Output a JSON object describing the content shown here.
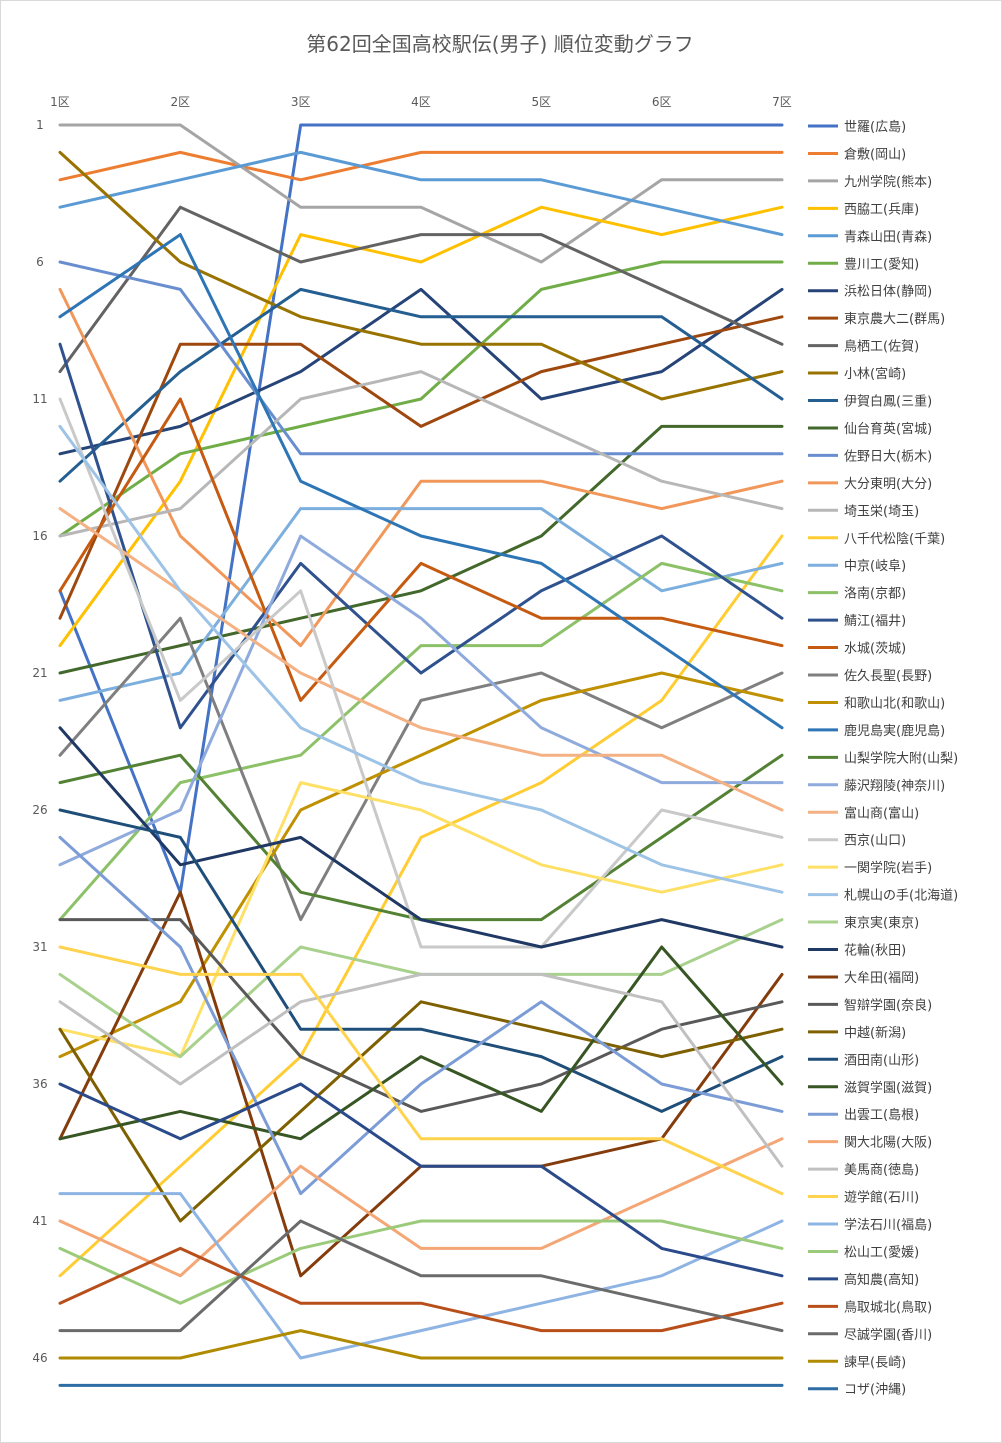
{
  "chart_data": {
    "type": "line",
    "title": "第62回全国高校駅伝(男子) 順位変動グラフ",
    "categories": [
      "1区",
      "2区",
      "3区",
      "4区",
      "5区",
      "6区",
      "7区"
    ],
    "y_tick_labels": [
      "1",
      "6",
      "11",
      "16",
      "21",
      "26",
      "31",
      "36",
      "41",
      "46"
    ],
    "ylim": [
      1,
      47
    ],
    "y_reversed": true,
    "grid": false,
    "legend_position": "right",
    "series": [
      {
        "name": "世羅(広島)",
        "color": "#4472C4",
        "values": [
          18,
          29,
          1,
          1,
          1,
          1,
          1
        ]
      },
      {
        "name": "倉敷(岡山)",
        "color": "#ED7D31",
        "values": [
          3,
          2,
          3,
          2,
          2,
          2,
          2
        ]
      },
      {
        "name": "九州学院(熊本)",
        "color": "#A5A5A5",
        "values": [
          1,
          1,
          4,
          4,
          6,
          3,
          3
        ]
      },
      {
        "name": "西脇工(兵庫)",
        "color": "#FFC000",
        "values": [
          20,
          14,
          5,
          6,
          4,
          5,
          4
        ]
      },
      {
        "name": "青森山田(青森)",
        "color": "#5B9BD5",
        "values": [
          4,
          3,
          2,
          3,
          3,
          4,
          5
        ]
      },
      {
        "name": "豊川工(愛知)",
        "color": "#70AD47",
        "values": [
          16,
          13,
          12,
          11,
          7,
          6,
          6
        ]
      },
      {
        "name": "浜松日体(静岡)",
        "color": "#264478",
        "values": [
          13,
          12,
          10,
          7,
          11,
          10,
          7
        ]
      },
      {
        "name": "東京農大二(群馬)",
        "color": "#9E480E",
        "values": [
          19,
          9,
          9,
          12,
          10,
          9,
          8
        ]
      },
      {
        "name": "鳥栖工(佐賀)",
        "color": "#636363",
        "values": [
          10,
          4,
          6,
          5,
          5,
          7,
          9
        ]
      },
      {
        "name": "小林(宮崎)",
        "color": "#997300",
        "values": [
          2,
          6,
          8,
          9,
          9,
          11,
          10
        ]
      },
      {
        "name": "伊賀白鳳(三重)",
        "color": "#255E91",
        "values": [
          14,
          10,
          7,
          8,
          8,
          8,
          11
        ]
      },
      {
        "name": "仙台育英(宮城)",
        "color": "#43682B",
        "values": [
          21,
          20,
          19,
          18,
          16,
          12,
          12
        ]
      },
      {
        "name": "佐野日大(栃木)",
        "color": "#698ED0",
        "values": [
          6,
          7,
          13,
          13,
          13,
          13,
          13
        ]
      },
      {
        "name": "大分東明(大分)",
        "color": "#F1975A",
        "values": [
          7,
          16,
          20,
          14,
          14,
          15,
          14
        ]
      },
      {
        "name": "埼玉栄(埼玉)",
        "color": "#B7B7B7",
        "values": [
          16,
          15,
          11,
          10,
          12,
          14,
          15
        ]
      },
      {
        "name": "八千代松陰(千葉)",
        "color": "#FFCD33",
        "values": [
          43,
          39,
          35,
          27,
          25,
          22,
          16
        ]
      },
      {
        "name": "中京(岐阜)",
        "color": "#7CAFDD",
        "values": [
          22,
          21,
          15,
          15,
          15,
          18,
          17
        ]
      },
      {
        "name": "洛南(京都)",
        "color": "#8CC168",
        "values": [
          30,
          25,
          24,
          20,
          20,
          17,
          18
        ]
      },
      {
        "name": "鯖江(福井)",
        "color": "#2F528F",
        "values": [
          9,
          23,
          17,
          21,
          18,
          16,
          19
        ]
      },
      {
        "name": "水城(茨城)",
        "color": "#C55A11",
        "values": [
          18,
          11,
          22,
          17,
          19,
          19,
          20
        ]
      },
      {
        "name": "佐久長聖(長野)",
        "color": "#7F7F7F",
        "values": [
          24,
          19,
          30,
          22,
          21,
          23,
          21
        ]
      },
      {
        "name": "和歌山北(和歌山)",
        "color": "#BF9000",
        "values": [
          35,
          33,
          26,
          24,
          22,
          21,
          22
        ]
      },
      {
        "name": "鹿児島実(鹿児島)",
        "color": "#2E75B6",
        "values": [
          8,
          5,
          14,
          16,
          17,
          20,
          23
        ]
      },
      {
        "name": "山梨学院大附(山梨)",
        "color": "#548235",
        "values": [
          25,
          24,
          29,
          30,
          30,
          27,
          24
        ]
      },
      {
        "name": "藤沢翔陵(神奈川)",
        "color": "#8FAADC",
        "values": [
          28,
          26,
          16,
          19,
          23,
          25,
          25
        ]
      },
      {
        "name": "富山商(富山)",
        "color": "#F4B183",
        "values": [
          15,
          18,
          21,
          23,
          24,
          24,
          26
        ]
      },
      {
        "name": "西京(山口)",
        "color": "#C9C9C9",
        "values": [
          11,
          22,
          18,
          31,
          31,
          26,
          27
        ]
      },
      {
        "name": "一関学院(岩手)",
        "color": "#FFE066",
        "values": [
          34,
          35,
          25,
          26,
          28,
          29,
          28
        ]
      },
      {
        "name": "札幌山の手(北海道)",
        "color": "#9DC3E6",
        "values": [
          12,
          18,
          23,
          25,
          26,
          28,
          29
        ]
      },
      {
        "name": "東京実(東京)",
        "color": "#A9D18E",
        "values": [
          32,
          35,
          31,
          32,
          32,
          32,
          30
        ]
      },
      {
        "name": "花輪(秋田)",
        "color": "#1F3864",
        "values": [
          23,
          28,
          27,
          30,
          31,
          30,
          31
        ]
      },
      {
        "name": "大牟田(福岡)",
        "color": "#843C0C",
        "values": [
          38,
          29,
          43,
          39,
          39,
          38,
          32
        ]
      },
      {
        "name": "智辯学園(奈良)",
        "color": "#595959",
        "values": [
          30,
          30,
          35,
          37,
          36,
          34,
          33
        ]
      },
      {
        "name": "中越(新潟)",
        "color": "#7F6000",
        "values": [
          34,
          41,
          37,
          33,
          34,
          35,
          34
        ]
      },
      {
        "name": "酒田南(山形)",
        "color": "#1F4E79",
        "values": [
          26,
          27,
          34,
          34,
          35,
          37,
          35
        ]
      },
      {
        "name": "滋賀学園(滋賀)",
        "color": "#375623",
        "values": [
          38,
          37,
          38,
          35,
          37,
          31,
          36
        ]
      },
      {
        "name": "出雲工(島根)",
        "color": "#7C9CD6",
        "values": [
          27,
          31,
          40,
          36,
          33,
          36,
          37
        ]
      },
      {
        "name": "関大北陽(大阪)",
        "color": "#F4A675",
        "values": [
          41,
          43,
          39,
          42,
          42,
          40,
          38
        ]
      },
      {
        "name": "美馬商(徳島)",
        "color": "#C0C0C0",
        "values": [
          33,
          36,
          33,
          32,
          32,
          33,
          39
        ]
      },
      {
        "name": "遊学館(石川)",
        "color": "#FFD34D",
        "values": [
          31,
          32,
          32,
          38,
          38,
          38,
          40
        ]
      },
      {
        "name": "学法石川(福島)",
        "color": "#8EB4E3",
        "values": [
          40,
          40,
          46,
          45,
          44,
          43,
          41
        ]
      },
      {
        "name": "松山工(愛媛)",
        "color": "#9BCB7A",
        "values": [
          42,
          44,
          42,
          41,
          41,
          41,
          42
        ]
      },
      {
        "name": "高知農(高知)",
        "color": "#2A4A8A",
        "values": [
          36,
          38,
          36,
          39,
          39,
          42,
          43
        ]
      },
      {
        "name": "鳥取城北(鳥取)",
        "color": "#B84F1A",
        "values": [
          44,
          42,
          44,
          44,
          45,
          45,
          44
        ]
      },
      {
        "name": "尽誠学園(香川)",
        "color": "#6B6B6B",
        "values": [
          45,
          45,
          41,
          43,
          43,
          44,
          45
        ]
      },
      {
        "name": "諫早(長崎)",
        "color": "#B08A00",
        "values": [
          46,
          46,
          45,
          46,
          46,
          46,
          46
        ]
      },
      {
        "name": "コザ(沖縄)",
        "color": "#2D6DA3",
        "values": [
          47,
          47,
          47,
          47,
          47,
          47,
          47
        ]
      }
    ]
  }
}
